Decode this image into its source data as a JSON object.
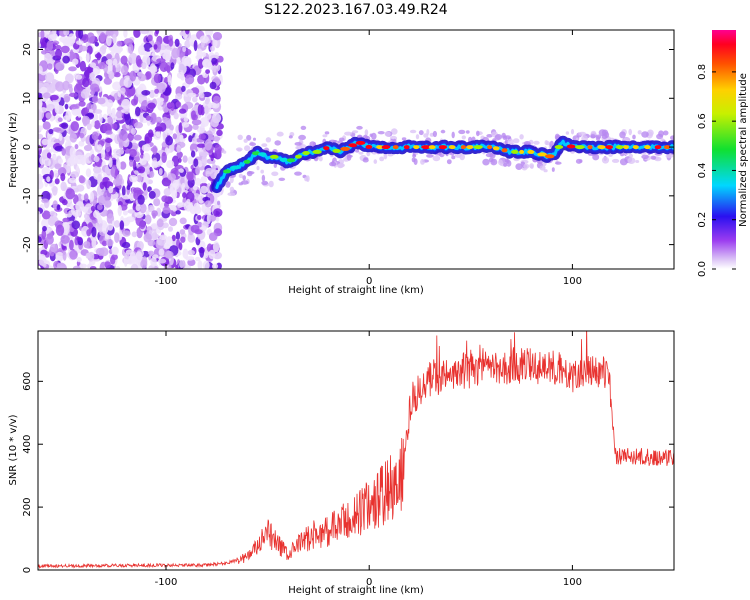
{
  "title": "S122.2023.167.03.49.R24",
  "chart_data": [
    {
      "type": "heatmap",
      "xlabel": "Height of straight line (km)",
      "ylabel": "Frequency (Hz)",
      "xlim": [
        -163,
        150
      ],
      "ylim": [
        -25,
        24
      ],
      "xticks": [
        -100,
        0,
        100
      ],
      "yticks": [
        -20,
        -10,
        0,
        10,
        20
      ],
      "colorbar": {
        "label": "Normalized spectral amplitude",
        "range": [
          0.0,
          0.97
        ],
        "ticks": [
          0.0,
          0.2,
          0.4,
          0.6,
          0.8
        ],
        "colormap": "rainbow"
      },
      "trace_points": [
        [
          -75,
          -8
        ],
        [
          -70,
          -5
        ],
        [
          -65,
          -4
        ],
        [
          -60,
          -3
        ],
        [
          -55,
          -1
        ],
        [
          -50,
          -2
        ],
        [
          -45,
          -2
        ],
        [
          -40,
          -3
        ],
        [
          -35,
          -2
        ],
        [
          -30,
          -1
        ],
        [
          -25,
          -1
        ],
        [
          -20,
          0
        ],
        [
          -15,
          -1
        ],
        [
          -10,
          0
        ],
        [
          -5,
          1
        ],
        [
          0,
          0
        ],
        [
          5,
          0
        ],
        [
          10,
          0
        ],
        [
          20,
          0
        ],
        [
          30,
          0
        ],
        [
          40,
          0
        ],
        [
          50,
          0
        ],
        [
          60,
          0
        ],
        [
          70,
          -1
        ],
        [
          80,
          -1
        ],
        [
          90,
          -2
        ],
        [
          95,
          1
        ],
        [
          100,
          0
        ],
        [
          110,
          0
        ],
        [
          120,
          0
        ],
        [
          130,
          0
        ],
        [
          140,
          0
        ],
        [
          150,
          0
        ]
      ],
      "noise_x_max": -75
    },
    {
      "type": "line",
      "xlabel": "Height of straight line (km)",
      "ylabel": "SNR (10 * v/v)",
      "xlim": [
        -163,
        150
      ],
      "ylim": [
        0,
        760
      ],
      "xticks": [
        -100,
        0,
        100
      ],
      "yticks": [
        0,
        200,
        400,
        600
      ],
      "color": "#e8322f",
      "series": [
        {
          "x": [
            -163,
            -140,
            -120,
            -100,
            -80,
            -70,
            -60,
            -55,
            -50,
            -45,
            -40,
            -35,
            -30,
            -25,
            -20,
            -15,
            -10,
            -5,
            0,
            5,
            10,
            15,
            17,
            20,
            25,
            30,
            40,
            50,
            60,
            70,
            80,
            90,
            100,
            110,
            118,
            121,
            130,
            140,
            150
          ],
          "y": [
            12,
            13,
            14,
            15,
            15,
            22,
            40,
            70,
            110,
            80,
            45,
            75,
            100,
            110,
            120,
            135,
            150,
            175,
            195,
            220,
            245,
            265,
            300,
            510,
            560,
            600,
            620,
            630,
            640,
            640,
            645,
            640,
            620,
            630,
            625,
            360,
            360,
            355,
            355
          ]
        }
      ]
    }
  ]
}
